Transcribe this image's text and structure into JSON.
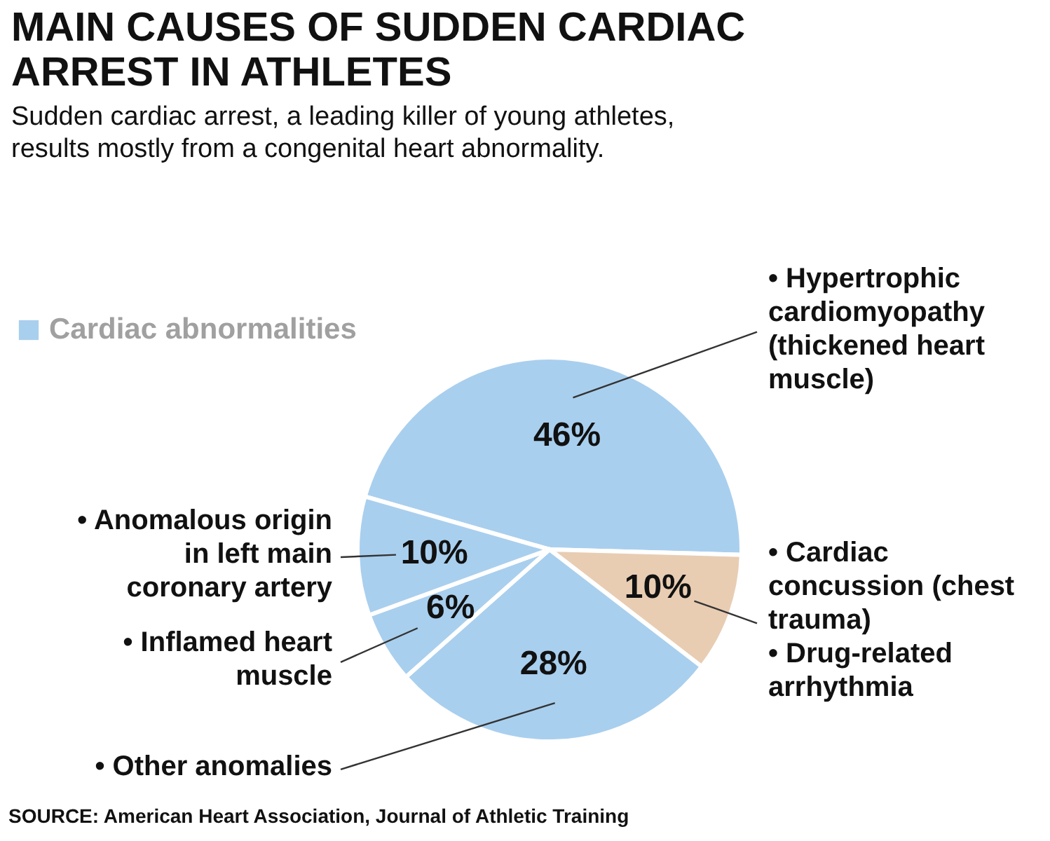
{
  "chart_data": {
    "type": "pie",
    "title": "MAIN CAUSES OF SUDDEN CARDIAC ARREST IN ATHLETES",
    "subtitle": "Sudden cardiac arrest, a leading killer of young athletes, results mostly from a congenital heart abnormality.",
    "legend_title": "Cardiac abnormalities",
    "categories": [
      "• Hypertrophic cardiomyopathy (thickened heart muscle)",
      "• Cardiac concussion (chest trauma) • Drug-related arrhythmia",
      "• Other anomalies",
      "• Inflamed heart muscle",
      "• Anomalous origin in left main coronary artery"
    ],
    "values": [
      46,
      10,
      28,
      6,
      10
    ],
    "value_labels": [
      "46%",
      "10%",
      "28%",
      "6%",
      "10%"
    ],
    "colors": [
      "#a9cfee",
      "#e8cdb3",
      "#a9cfee",
      "#a9cfee",
      "#a9cfee"
    ],
    "annotations": [
      "SOURCE: American Heart Association, Journal of Athletic Training"
    ]
  }
}
